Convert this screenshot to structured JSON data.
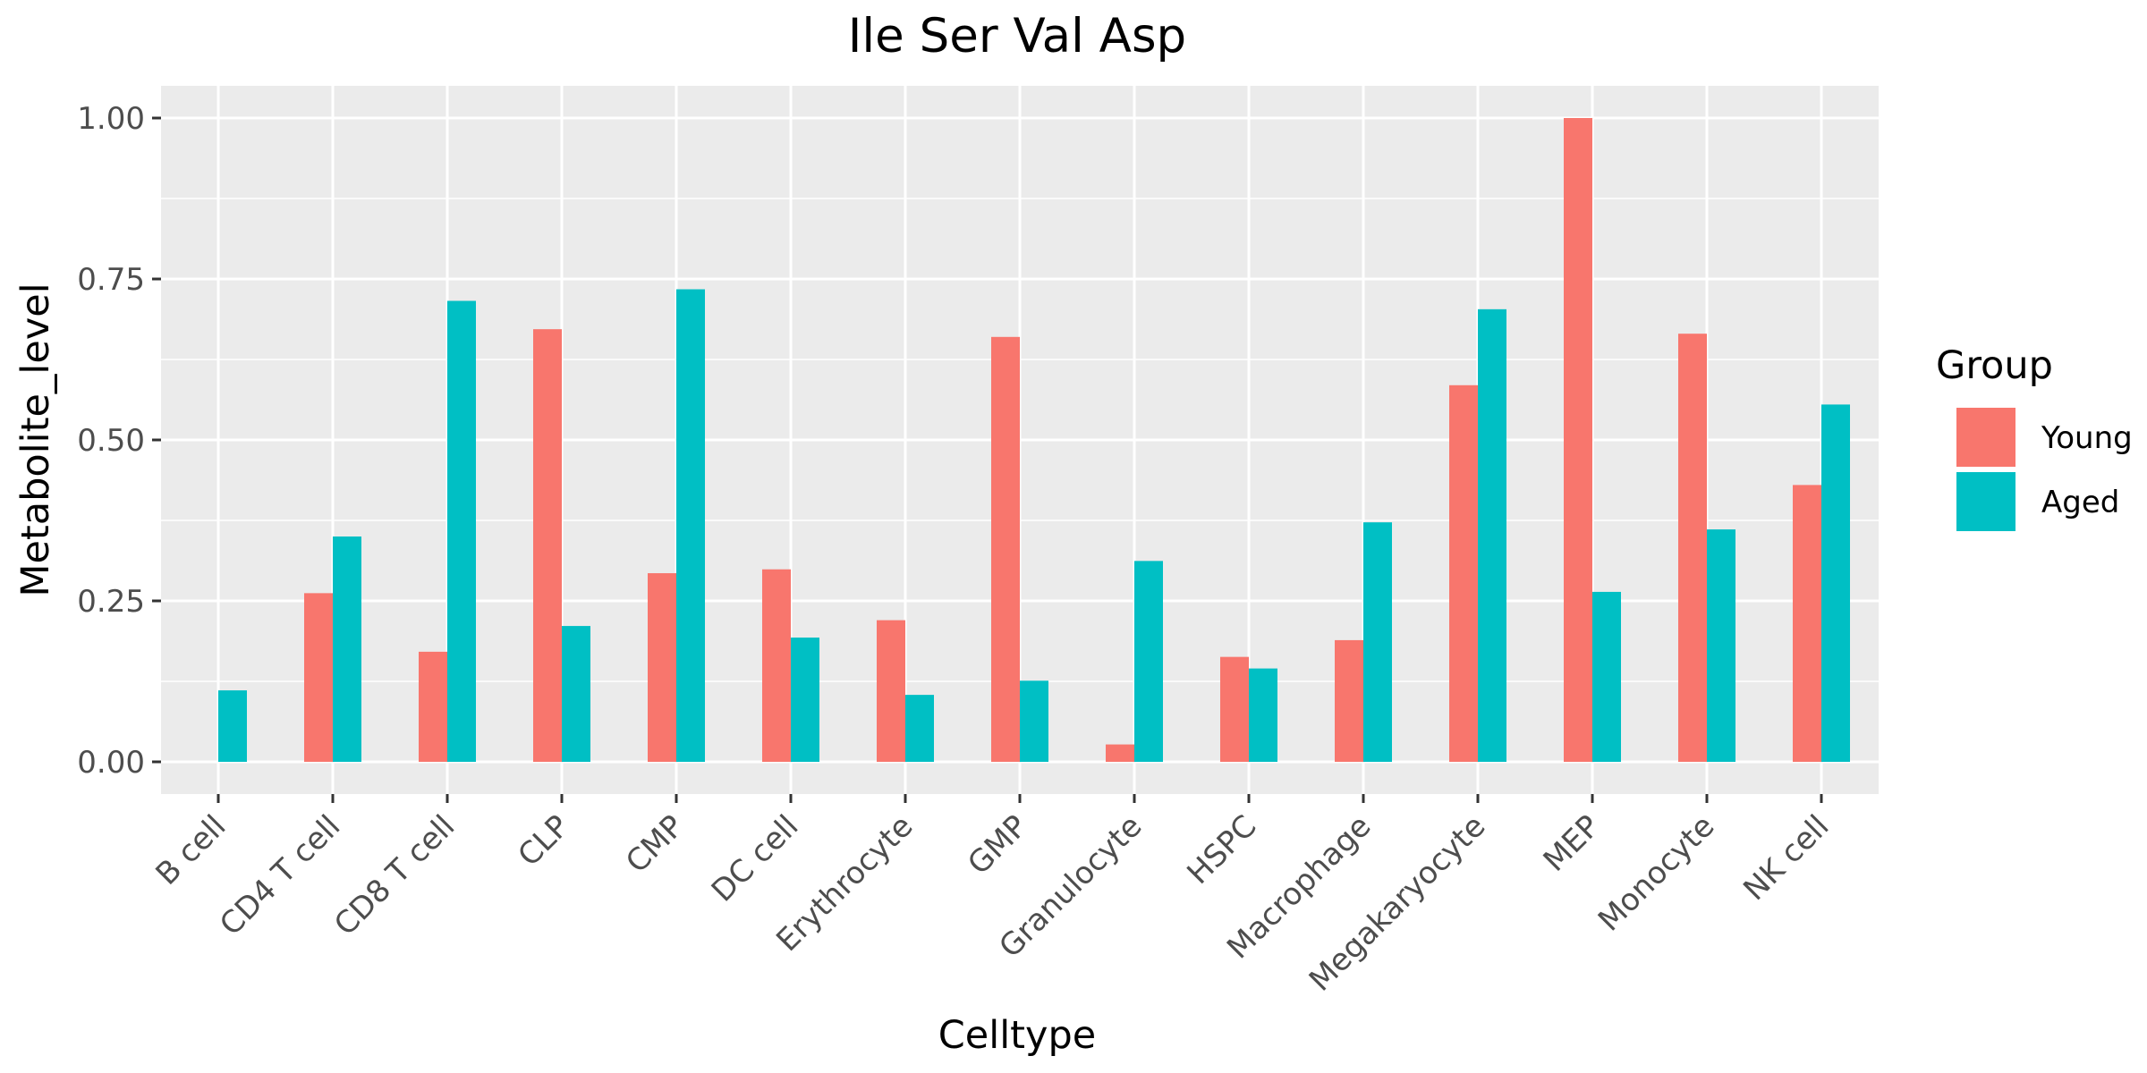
{
  "chart_data": {
    "type": "bar",
    "title": "Ile Ser Val Asp",
    "xlabel": "Celltype",
    "ylabel": "Metabolite_level",
    "categories": [
      "B cell",
      "CD4 T cell",
      "CD8 T cell",
      "CLP",
      "CMP",
      "DC cell",
      "Erythrocyte",
      "GMP",
      "Granulocyte",
      "HSPC",
      "Macrophage",
      "Megakaryocyte",
      "MEP",
      "Monocyte",
      "NK cell"
    ],
    "series": [
      {
        "name": "Young",
        "color": "#F8766D",
        "values": [
          0.0,
          0.262,
          0.171,
          0.672,
          0.293,
          0.299,
          0.22,
          0.66,
          0.027,
          0.163,
          0.189,
          0.585,
          1.0,
          0.665,
          0.43
        ]
      },
      {
        "name": "Aged",
        "color": "#00BFC4",
        "values": [
          0.111,
          0.35,
          0.716,
          0.211,
          0.734,
          0.193,
          0.104,
          0.126,
          0.312,
          0.145,
          0.372,
          0.703,
          0.264,
          0.361,
          0.555
        ]
      }
    ],
    "ylim": [
      -0.05,
      1.05
    ],
    "yticks": [
      0.0,
      0.25,
      0.5,
      0.75,
      1.0
    ],
    "ytick_labels": [
      "0.00",
      "0.25",
      "0.50",
      "0.75",
      "1.00"
    ],
    "legend": {
      "title": "Group",
      "position": "right"
    },
    "grid": true,
    "panel_background": "#EBEBEB"
  }
}
